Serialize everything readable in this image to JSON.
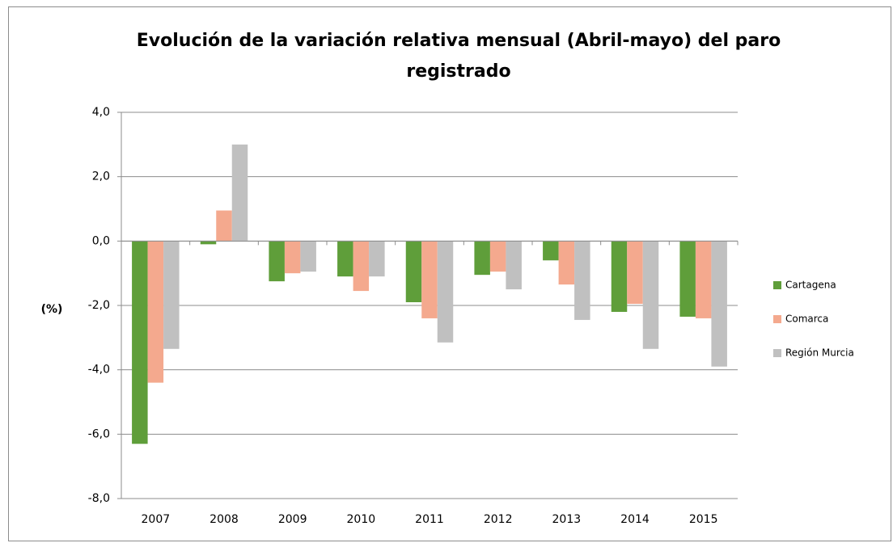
{
  "chart_data": {
    "type": "bar",
    "title": "Evolución de la variación relativa mensual (Abril-mayo) del paro registrado",
    "y_label": "(%)",
    "categories": [
      "2007",
      "2008",
      "2009",
      "2010",
      "2011",
      "2012",
      "2013",
      "2014",
      "2015"
    ],
    "series": [
      {
        "name": "Cartagena",
        "color": "#5f9e3a",
        "values": [
          -6.3,
          -0.1,
          -1.25,
          -1.1,
          -1.9,
          -1.05,
          -0.6,
          -2.2,
          -2.35
        ]
      },
      {
        "name": "Comarca",
        "color": "#f4a98e",
        "values": [
          -4.4,
          0.95,
          -1.0,
          -1.55,
          -2.4,
          -0.95,
          -1.35,
          -1.95,
          -2.4
        ]
      },
      {
        "name": "Región Murcia",
        "color": "#c0c0c0",
        "values": [
          -3.35,
          3.0,
          -0.95,
          -1.1,
          -3.15,
          -1.5,
          -2.45,
          -3.35,
          -3.9
        ]
      }
    ],
    "ylim": [
      -8,
      4
    ],
    "yticks": [
      {
        "value": -8,
        "label": "-8,0"
      },
      {
        "value": -6,
        "label": "-6,0"
      },
      {
        "value": -4,
        "label": "-4,0"
      },
      {
        "value": -2,
        "label": "-2,0"
      },
      {
        "value": 0,
        "label": "0,0"
      },
      {
        "value": 2,
        "label": "2,0"
      },
      {
        "value": 4,
        "label": "4,0"
      }
    ],
    "grid": true,
    "legend": "right"
  }
}
